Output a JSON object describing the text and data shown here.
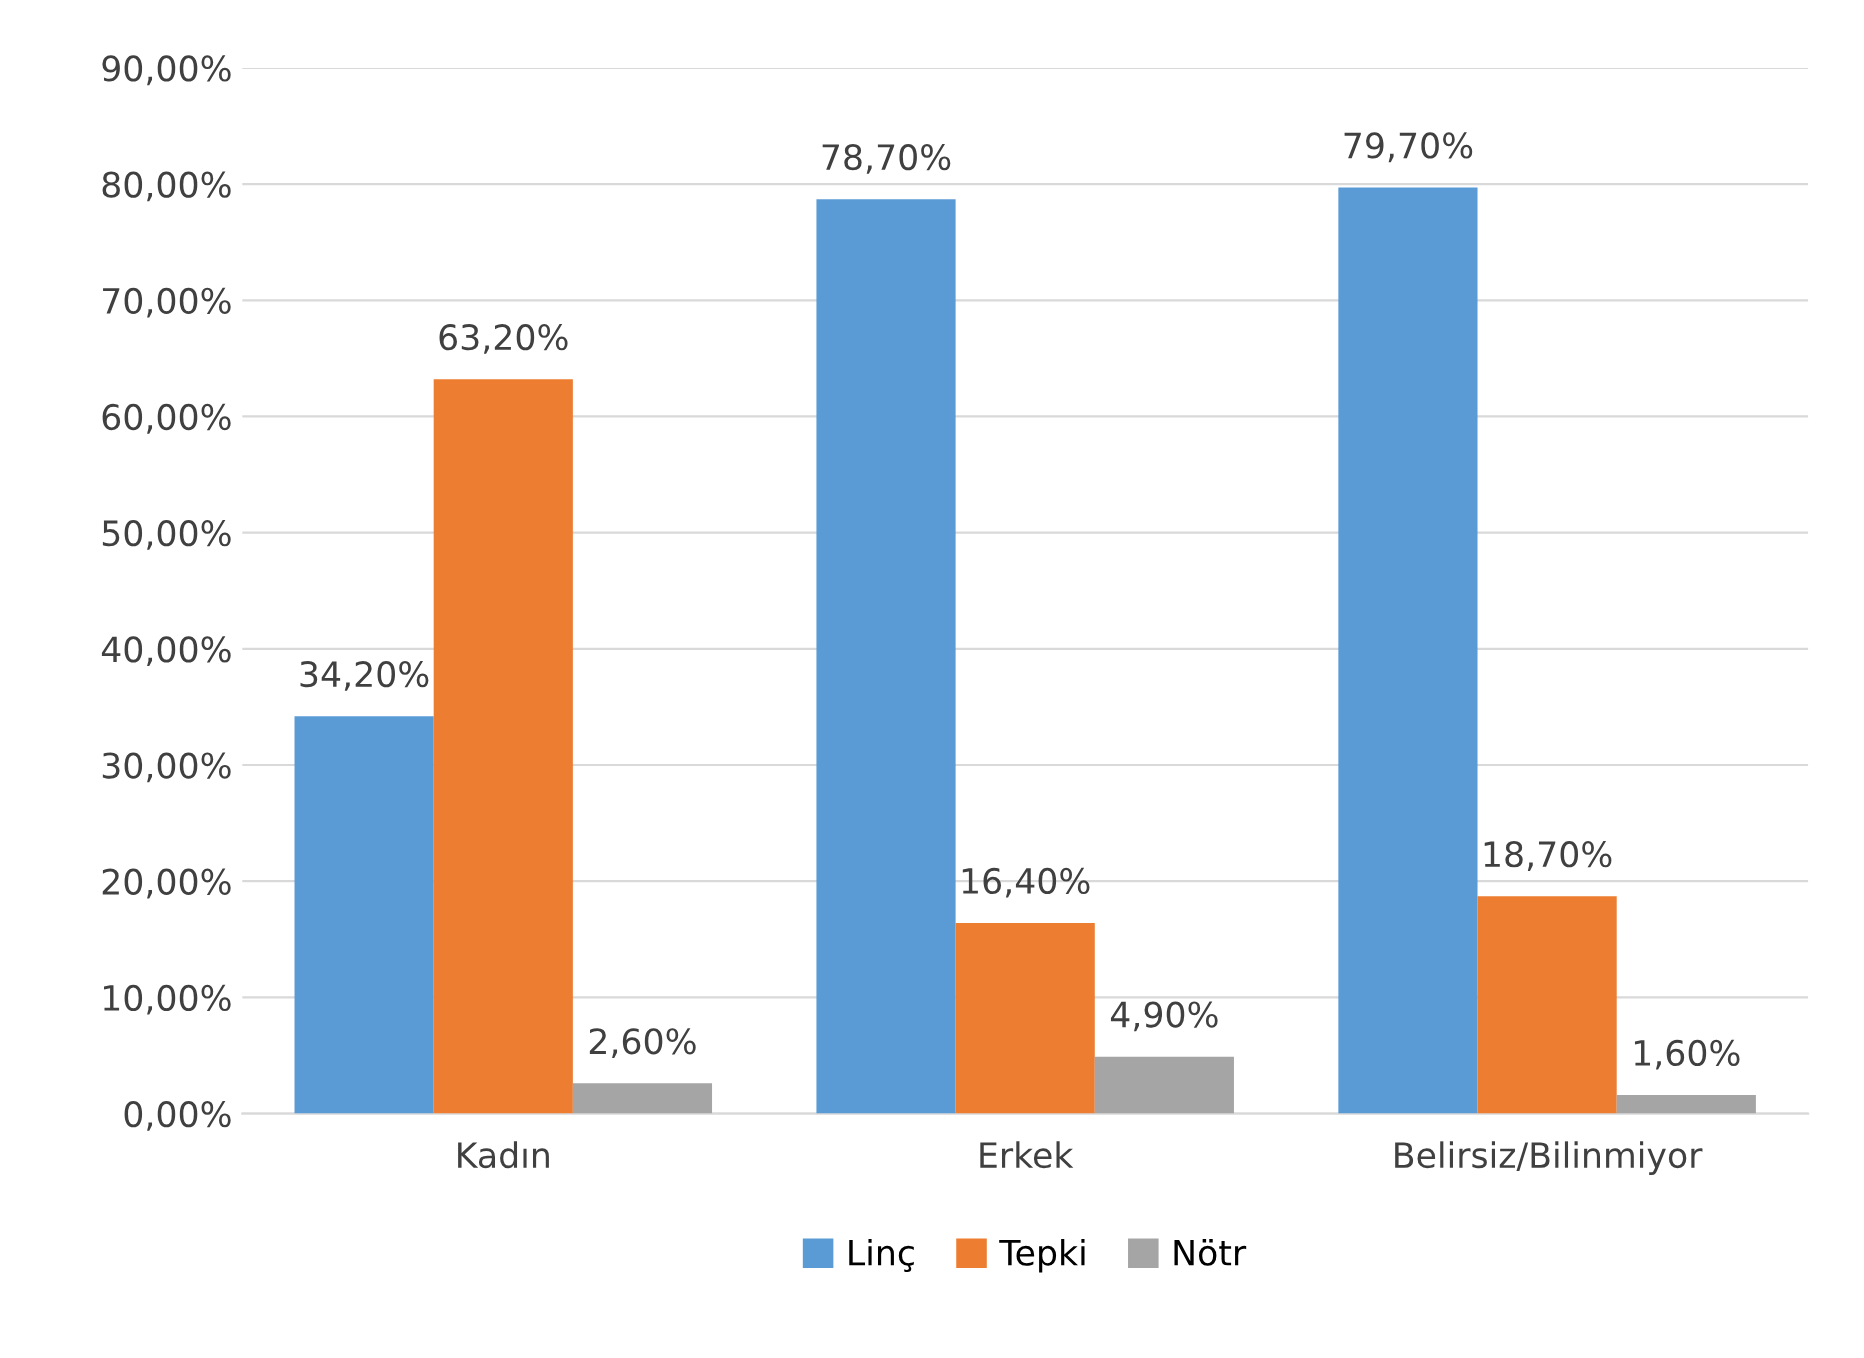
{
  "chart_data": {
    "type": "bar",
    "categories": [
      "Kadın",
      "Erkek",
      "Belirsiz/Bilinmiyor"
    ],
    "series": [
      {
        "name": "Linç",
        "color": "#5b9bd5",
        "values": [
          34.2,
          78.7,
          79.7
        ],
        "value_labels": [
          "34,20%",
          "78,70%",
          "79,70%"
        ]
      },
      {
        "name": "Tepki",
        "color": "#ed7d31",
        "values": [
          63.2,
          16.4,
          18.7
        ],
        "value_labels": [
          "63,20%",
          "16,40%",
          "18,70%"
        ]
      },
      {
        "name": "Nötr",
        "color": "#a5a5a5",
        "values": [
          2.6,
          4.9,
          1.6
        ],
        "value_labels": [
          "2,60%",
          "4,90%",
          "1,60%"
        ]
      }
    ],
    "ylim": [
      0,
      90
    ],
    "yticks": [
      {
        "value": 0,
        "label": "0,00%"
      },
      {
        "value": 10,
        "label": "10,00%"
      },
      {
        "value": 20,
        "label": "20,00%"
      },
      {
        "value": 30,
        "label": "30,00%"
      },
      {
        "value": 40,
        "label": "40,00%"
      },
      {
        "value": 50,
        "label": "50,00%"
      },
      {
        "value": 60,
        "label": "60,00%"
      },
      {
        "value": 70,
        "label": "70,00%"
      },
      {
        "value": 80,
        "label": "80,00%"
      },
      {
        "value": 90,
        "label": "90,00%"
      }
    ],
    "grid": "y",
    "legend": "bottom"
  }
}
